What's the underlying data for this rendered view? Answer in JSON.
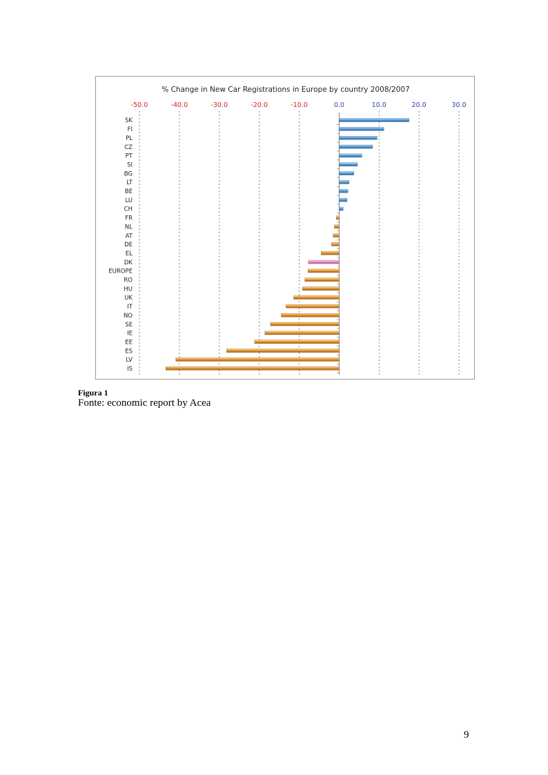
{
  "chart_data": {
    "type": "bar",
    "orientation": "horizontal",
    "title": "% Change in New Car Registrations in Europe by country 2008/2007",
    "xlim": [
      -50,
      30
    ],
    "ticks": [
      -50,
      -40,
      -30,
      -20,
      -10,
      0,
      10,
      20,
      30
    ],
    "tick_labels": [
      "-50.0",
      "-40.0",
      "-30.0",
      "-20.0",
      "-10.0",
      "0.0",
      "10.0",
      "20.0",
      "30.0"
    ],
    "axis_position": "top",
    "grid": "vertical dashed",
    "categories": [
      "SK",
      "FI",
      "PL",
      "CZ",
      "PT",
      "SI",
      "BG",
      "LT",
      "BE",
      "LU",
      "CH",
      "FR",
      "NL",
      "AT",
      "DE",
      "EL",
      "DK",
      "EUROPE",
      "RO",
      "HU",
      "UK",
      "IT",
      "NO",
      "SE",
      "IE",
      "EE",
      "ES",
      "LV",
      "IS"
    ],
    "values": [
      17.5,
      11.2,
      9.5,
      8.4,
      5.7,
      4.6,
      3.7,
      2.5,
      2.2,
      2.0,
      1.0,
      -0.7,
      -1.2,
      -1.5,
      -1.9,
      -4.5,
      -7.7,
      -7.8,
      -8.6,
      -9.2,
      -11.4,
      -13.3,
      -14.5,
      -17.2,
      -18.6,
      -21.2,
      -28.2,
      -40.9,
      -43.4
    ],
    "colors": {
      "positive": "#5b9bd5",
      "negative": "#e59a2e",
      "highlight": "#e58ac4",
      "positive_tick": "#2e3fa8",
      "negative_tick": "#d42020"
    },
    "highlight_category": "DK"
  },
  "caption": {
    "figure": "Figura 1",
    "source": "Fonte: economic report by Acea"
  },
  "page": {
    "number": "9"
  }
}
